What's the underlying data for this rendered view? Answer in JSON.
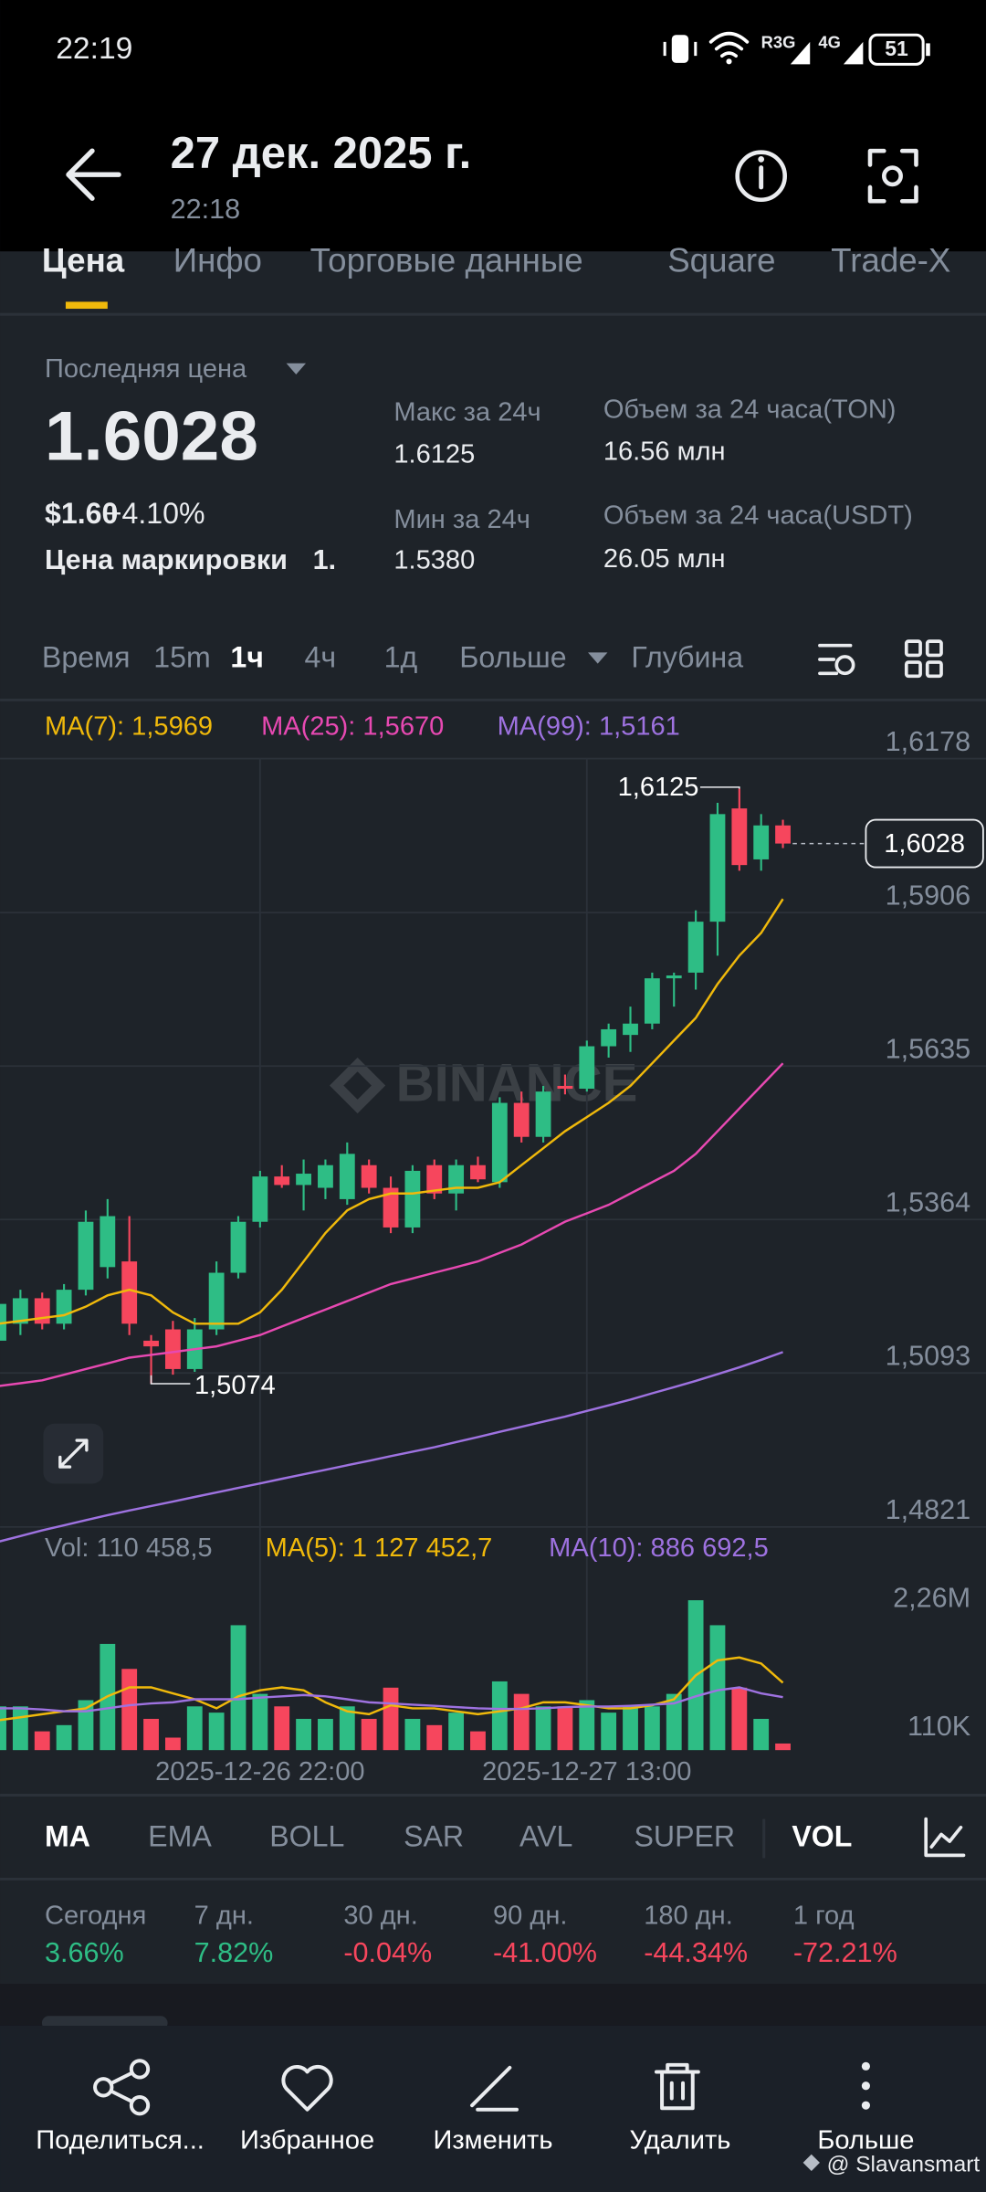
{
  "status": {
    "time": "22:19",
    "net1": "R3G",
    "net2": "4G",
    "battery": "51"
  },
  "header": {
    "title": "27 дек. 2025 г.",
    "subtitle": "22:18"
  },
  "tabs": [
    "Цена",
    "Инфо",
    "Торговые данные",
    "Square",
    "Trade-X"
  ],
  "stats": {
    "last_price_label": "Последняя цена",
    "last_price": "1.6028",
    "usd_price": "$1.60",
    "change": "+4.10%",
    "mark_price_label": "Цена маркировки",
    "mark_price": "1.",
    "high_label": "Макс за 24ч",
    "high": "1.6125",
    "low_label": "Мин за 24ч",
    "low": "1.5380",
    "vol_ton_label": "Объем за 24 часа(TON)",
    "vol_ton": "16.56 млн",
    "vol_usdt_label": "Объем за 24 часа(USDT)",
    "vol_usdt": "26.05 млн"
  },
  "intervals": [
    "Время",
    "15m",
    "1ч",
    "4ч",
    "1д",
    "Больше",
    "Глубина"
  ],
  "chart_data": {
    "type": "candlestick",
    "watermark": "BINANCE",
    "up_color": "#2ebd85",
    "down_color": "#f6465d",
    "categories": [
      null,
      null,
      null,
      null,
      null,
      null,
      null,
      null,
      null,
      null,
      null,
      null,
      "2025-12-26 22:00",
      null,
      null,
      null,
      null,
      null,
      null,
      null,
      null,
      null,
      null,
      null,
      null,
      null,
      null,
      "2025-12-27 13:00",
      null,
      null,
      null,
      null,
      null,
      null,
      null,
      null,
      null
    ],
    "open": [
      1.515,
      1.518,
      1.5225,
      1.518,
      1.524,
      1.528,
      1.529,
      1.515,
      1.517,
      1.51,
      1.517,
      1.527,
      1.536,
      1.544,
      1.5425,
      1.542,
      1.54,
      1.546,
      1.542,
      1.535,
      1.546,
      1.541,
      1.546,
      1.543,
      1.557,
      1.551,
      1.56,
      1.5595,
      1.567,
      1.569,
      1.571,
      1.579,
      1.58,
      1.589,
      1.609,
      1.6,
      1.606
    ],
    "high": [
      1.523,
      1.524,
      1.5235,
      1.525,
      1.538,
      1.54,
      1.537,
      1.516,
      1.5185,
      1.519,
      1.529,
      1.537,
      1.545,
      1.546,
      1.547,
      1.547,
      1.55,
      1.547,
      1.544,
      1.546,
      1.547,
      1.547,
      1.5475,
      1.558,
      1.559,
      1.56,
      1.562,
      1.568,
      1.571,
      1.574,
      1.58,
      1.58,
      1.591,
      1.61,
      1.6125,
      1.608,
      1.607
    ],
    "low": [
      1.512,
      1.516,
      1.517,
      1.517,
      1.523,
      1.526,
      1.516,
      1.5074,
      1.509,
      1.5095,
      1.516,
      1.526,
      1.535,
      1.542,
      1.538,
      1.54,
      1.539,
      1.541,
      1.534,
      1.534,
      1.54,
      1.538,
      1.543,
      1.542,
      1.55,
      1.55,
      1.5585,
      1.559,
      1.565,
      1.566,
      1.57,
      1.574,
      1.577,
      1.583,
      1.598,
      1.598,
      1.602
    ],
    "close": [
      1.5215,
      1.5225,
      1.518,
      1.524,
      1.536,
      1.537,
      1.518,
      1.514,
      1.51,
      1.517,
      1.527,
      1.536,
      1.544,
      1.5425,
      1.5445,
      1.546,
      1.548,
      1.542,
      1.535,
      1.545,
      1.541,
      1.546,
      1.5435,
      1.557,
      1.551,
      1.559,
      1.5595,
      1.567,
      1.57,
      1.571,
      1.579,
      1.5795,
      1.589,
      1.608,
      1.599,
      1.606,
      1.6028
    ],
    "volume": [
      732000,
      732000,
      314000,
      418000,
      836000,
      1777000,
      1359000,
      523000,
      209000,
      732000,
      627000,
      2090000,
      941000,
      732000,
      523000,
      523000,
      732000,
      523000,
      1045000,
      523000,
      418000,
      627000,
      314000,
      1150000,
      941000,
      732000,
      732000,
      836000,
      627000,
      732000,
      732000,
      941000,
      2508000,
      2090000,
      1045000,
      523000,
      110458.5
    ],
    "ylim": [
      1.4821,
      1.6178
    ],
    "yticks": [
      {
        "value": 1.6178,
        "label": "1,6178"
      },
      {
        "value": 1.5906,
        "label": "1,5906"
      },
      {
        "value": 1.5635,
        "label": "1,5635"
      },
      {
        "value": 1.5364,
        "label": "1,5364"
      },
      {
        "value": 1.5093,
        "label": "1,5093"
      },
      {
        "value": 1.4821,
        "label": "1,4821"
      }
    ],
    "vol_ylim": [
      0,
      3570000
    ],
    "vol_yticks": [
      {
        "value": 2260000,
        "label": "2,26M"
      },
      {
        "value": 110000,
        "label": "110K"
      }
    ],
    "series": [
      {
        "label": "MA(7): 1,5969",
        "color": "#f0b90b",
        "values": [
          1.518,
          1.5185,
          1.519,
          1.5195,
          1.521,
          1.523,
          1.524,
          1.523,
          1.52,
          1.518,
          1.518,
          1.518,
          1.52,
          1.524,
          1.529,
          1.534,
          1.538,
          1.54,
          1.541,
          1.541,
          1.5415,
          1.542,
          1.542,
          1.543,
          1.546,
          1.549,
          1.552,
          1.5545,
          1.557,
          1.56,
          1.564,
          1.568,
          1.572,
          1.578,
          1.583,
          1.587,
          1.593
        ]
      },
      {
        "label": "MA(25): 1,5670",
        "color": "#e749b2",
        "values": [
          1.507,
          1.5075,
          1.508,
          1.509,
          1.51,
          1.511,
          1.512,
          1.5125,
          1.513,
          1.5135,
          1.514,
          1.515,
          1.516,
          1.5175,
          1.519,
          1.5205,
          1.522,
          1.5235,
          1.525,
          1.526,
          1.527,
          1.528,
          1.529,
          1.5305,
          1.532,
          1.534,
          1.536,
          1.5375,
          1.539,
          1.541,
          1.543,
          1.545,
          1.548,
          1.552,
          1.556,
          1.56,
          1.564
        ]
      },
      {
        "label": "MA(99): 1,5161",
        "color": "#9e72e0",
        "values": [
          1.4795,
          1.4805,
          1.4815,
          1.4824,
          1.4833,
          1.4842,
          1.485,
          1.4858,
          1.4866,
          1.4874,
          1.4882,
          1.489,
          1.4898,
          1.4906,
          1.4914,
          1.4922,
          1.493,
          1.4938,
          1.4946,
          1.4954,
          1.4962,
          1.4971,
          1.498,
          1.4989,
          1.4998,
          1.5007,
          1.5016,
          1.5026,
          1.5036,
          1.5046,
          1.5057,
          1.5068,
          1.5079,
          1.5091,
          1.5103,
          1.5116,
          1.513
        ]
      }
    ],
    "vol_label": "Vol: 110 458,5",
    "vol_series": [
      {
        "label": "MA(5): 1 127 452,7",
        "color": "#f0b90b",
        "values": [
          500000,
          550000,
          600000,
          650000,
          700000,
          900000,
          1050000,
          1050000,
          950000,
          850000,
          700000,
          900000,
          1000000,
          1050000,
          1000000,
          800000,
          650000,
          600000,
          750000,
          700000,
          700000,
          650000,
          600000,
          650000,
          700000,
          800000,
          800000,
          750000,
          700000,
          700000,
          750000,
          850000,
          1250000,
          1500000,
          1550000,
          1450000,
          1127452.7
        ]
      },
      {
        "label": "MA(10): 886 692,5",
        "color": "#9e72e0",
        "values": [
          700000,
          700000,
          680000,
          650000,
          650000,
          700000,
          750000,
          780000,
          800000,
          850000,
          850000,
          850000,
          880000,
          900000,
          920000,
          900000,
          850000,
          800000,
          780000,
          760000,
          740000,
          720000,
          700000,
          690000,
          690000,
          700000,
          720000,
          730000,
          730000,
          740000,
          760000,
          780000,
          900000,
          1000000,
          1050000,
          950000,
          886692.5
        ]
      }
    ],
    "high_annotation": {
      "value": 1.6125,
      "label": "1,6125"
    },
    "low_annotation": {
      "value": 1.5074,
      "label": "1,5074"
    },
    "last_price": {
      "value": 1.6028,
      "label": "1,6028"
    }
  },
  "indicators": [
    "MA",
    "EMA",
    "BOLL",
    "SAR",
    "AVL",
    "SUPER",
    "VOL"
  ],
  "performance": [
    {
      "label": "Сегодня",
      "value": "3.66%",
      "color": "#2ebd85"
    },
    {
      "label": "7 дн.",
      "value": "7.82%",
      "color": "#2ebd85"
    },
    {
      "label": "30 дн.",
      "value": "-0.04%",
      "color": "#f6465d"
    },
    {
      "label": "90 дн.",
      "value": "-41.00%",
      "color": "#f6465d"
    },
    {
      "label": "180 дн.",
      "value": "-44.34%",
      "color": "#f6465d"
    },
    {
      "label": "1 год",
      "value": "-72.21%",
      "color": "#f6465d"
    }
  ],
  "nav": [
    "Поделиться...",
    "Избранное",
    "Изменить",
    "Удалить",
    "Больше"
  ],
  "watermark": "@ Slavansmart"
}
